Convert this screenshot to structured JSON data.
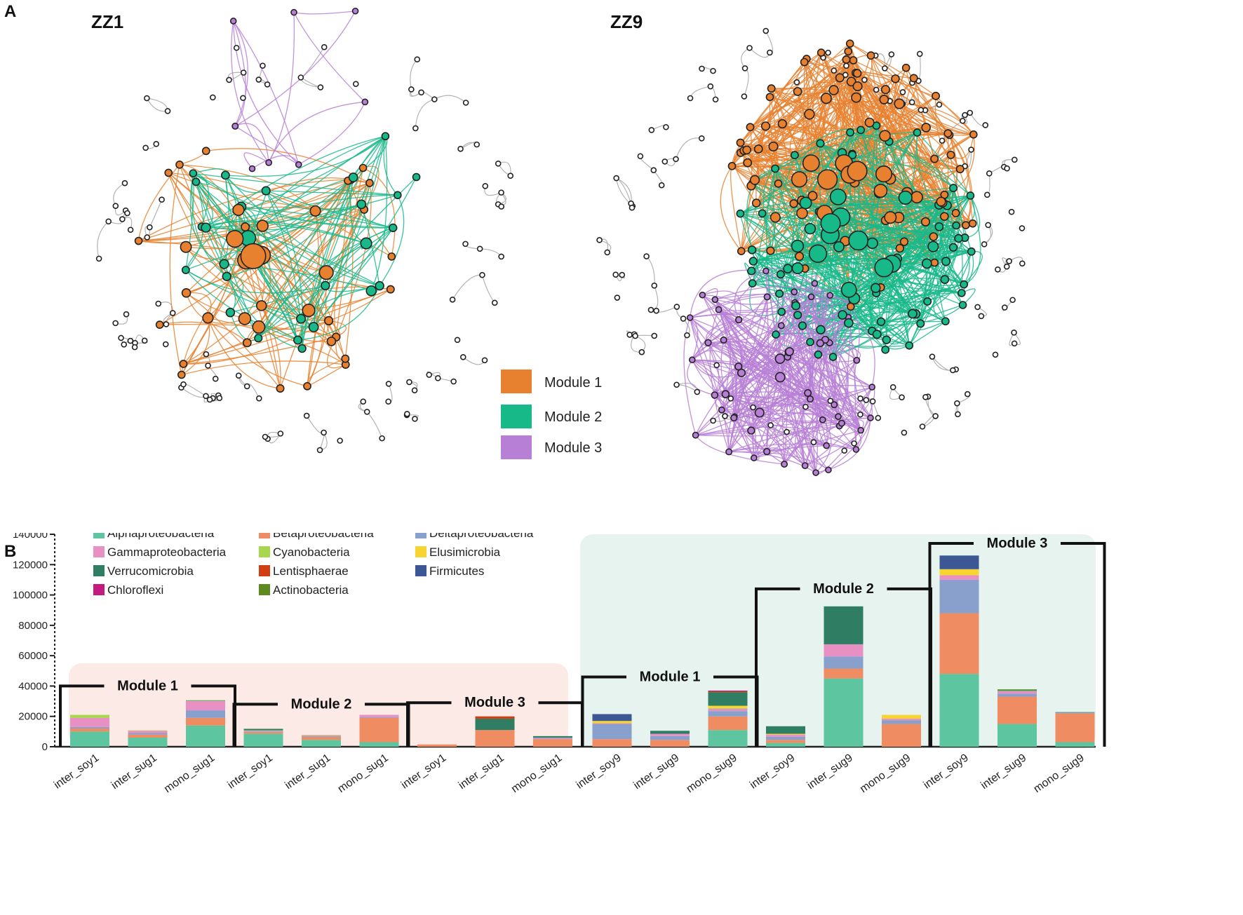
{
  "panel_a": {
    "label": "A",
    "networks": [
      {
        "title": "ZZ1"
      },
      {
        "title": "ZZ9"
      }
    ],
    "legend": [
      {
        "label": "Module 1",
        "color": "#e8812f"
      },
      {
        "label": "Module 2",
        "color": "#17b989"
      },
      {
        "label": "Module 3",
        "color": "#b77fd6"
      }
    ],
    "edge_color_other": "#b3b3b3",
    "node_color_other": "#ffffff"
  },
  "chart_data": {
    "type": "bar",
    "stacked": true,
    "panel_label": "B",
    "categories": [
      "inter_soy1",
      "inter_sug1",
      "mono_sug1",
      "inter_soy1",
      "inter_sug1",
      "mono_sug1",
      "inter_soy1",
      "inter_sug1",
      "mono_sug1",
      "inter_soy9",
      "inter_sug9",
      "mono_sug9",
      "inter_soy9",
      "inter_sug9",
      "mono_sug9",
      "inter_soy9",
      "inter_sug9",
      "mono_sug9"
    ],
    "ylim": [
      0,
      140000
    ],
    "yticks": [
      0,
      20000,
      40000,
      60000,
      80000,
      100000,
      120000,
      140000
    ],
    "ytick_labels": [
      "0",
      "20000",
      "40000",
      "60000",
      "80000",
      "100000",
      "120000",
      "140000"
    ],
    "series": [
      {
        "name": "Alphaproteobacteria",
        "color": "#5dc6a0",
        "values": [
          10000,
          6000,
          14000,
          8500,
          4500,
          3000,
          0,
          0,
          0,
          0,
          0,
          11000,
          2500,
          45000,
          0,
          48000,
          15000,
          3000
        ]
      },
      {
        "name": "Betaproteobacteria",
        "color": "#ef8c61",
        "values": [
          2000,
          2000,
          5000,
          1000,
          2000,
          16000,
          1500,
          11000,
          5000,
          5000,
          4500,
          9000,
          2000,
          6500,
          15000,
          40000,
          18000,
          19000
        ]
      },
      {
        "name": "Deltaproteobacteria",
        "color": "#8aa0cc",
        "values": [
          1000,
          1000,
          5000,
          500,
          500,
          500,
          0,
          0,
          500,
          10000,
          2500,
          3500,
          2000,
          8000,
          2500,
          22000,
          2000,
          500
        ]
      },
      {
        "name": "Gammaproteobacteria",
        "color": "#e88fc4",
        "values": [
          6000,
          1500,
          6000,
          500,
          500,
          1500,
          0,
          0,
          500,
          500,
          1500,
          1500,
          1500,
          8000,
          1000,
          3000,
          1500,
          0
        ]
      },
      {
        "name": "Cyanobacteria",
        "color": "#a8d64c",
        "values": [
          2000,
          300,
          300,
          300,
          300,
          0,
          0,
          0,
          0,
          0,
          0,
          500,
          0,
          0,
          0,
          0,
          300,
          0
        ]
      },
      {
        "name": "Elusimicrobia",
        "color": "#f7d531",
        "values": [
          0,
          0,
          0,
          0,
          0,
          0,
          0,
          0,
          0,
          1500,
          0,
          1500,
          500,
          0,
          2500,
          4000,
          0,
          0
        ]
      },
      {
        "name": "Verrucomicrobia",
        "color": "#2f7d62",
        "values": [
          0,
          0,
          300,
          1000,
          0,
          0,
          0,
          7500,
          1000,
          0,
          2000,
          9000,
          5000,
          25000,
          0,
          0,
          500,
          300
        ]
      },
      {
        "name": "Lentisphaerae",
        "color": "#d23e14",
        "values": [
          0,
          0,
          0,
          0,
          0,
          0,
          0,
          1500,
          0,
          0,
          0,
          500,
          0,
          0,
          0,
          0,
          0,
          0
        ]
      },
      {
        "name": "Firmicutes",
        "color": "#3c5793",
        "values": [
          0,
          0,
          0,
          0,
          0,
          0,
          0,
          0,
          0,
          4500,
          0,
          0,
          0,
          0,
          0,
          9000,
          0,
          0
        ]
      },
      {
        "name": "Chloroflexi",
        "color": "#c51a7f",
        "values": [
          0,
          0,
          0,
          0,
          0,
          0,
          0,
          0,
          0,
          0,
          0,
          500,
          0,
          0,
          0,
          0,
          0,
          0
        ]
      },
      {
        "name": "Actinobacteria",
        "color": "#5d8a1f",
        "values": [
          0,
          0,
          0,
          0,
          0,
          0,
          0,
          0,
          0,
          0,
          0,
          0,
          0,
          0,
          0,
          0,
          500,
          0
        ]
      }
    ],
    "module_groups": [
      {
        "label": "Module 1",
        "bracket_value": 40000,
        "start": 0,
        "end": 2
      },
      {
        "label": "Module 2",
        "bracket_value": 28000,
        "start": 3,
        "end": 5
      },
      {
        "label": "Module 3",
        "bracket_value": 29000,
        "start": 6,
        "end": 8
      },
      {
        "label": "Module 1",
        "bracket_value": 46000,
        "start": 9,
        "end": 11
      },
      {
        "label": "Module 2",
        "bracket_value": 104000,
        "start": 12,
        "end": 14
      },
      {
        "label": "Module 3",
        "bracket_value": 134000,
        "start": 15,
        "end": 17
      }
    ],
    "region_colors": {
      "zz1": "#fbeae5",
      "zz9": "#e6f3ef"
    }
  }
}
